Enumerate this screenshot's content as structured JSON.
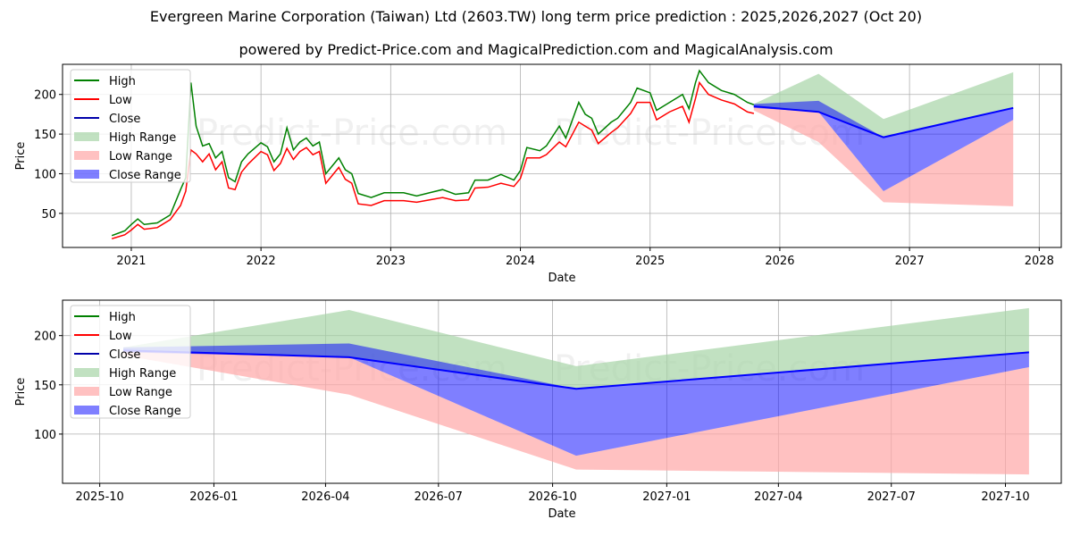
{
  "title": "Evergreen Marine Corporation (Taiwan) Ltd (2603.TW) long term price prediction : 2025,2026,2027 (Oct 20)",
  "subtitle": "powered by Predict-Price.com and MagicalPrediction.com and MagicalAnalysis.com",
  "watermark": "Predict-Price.com",
  "colors": {
    "high": "#008000",
    "low": "#ff0000",
    "close": "#0000ff",
    "high_range": "#a6d4a6",
    "low_range": "#ffa6a6",
    "close_range": "#0000ff"
  },
  "chart_data": [
    {
      "type": "line",
      "xlabel": "Date",
      "ylabel": "Price",
      "xlim": [
        2020.47,
        2028.17
      ],
      "ylim": [
        7,
        238
      ],
      "xticks": [
        2021,
        2022,
        2023,
        2024,
        2025,
        2026,
        2027,
        2028
      ],
      "xtick_labels": [
        "2021",
        "2022",
        "2023",
        "2024",
        "2025",
        "2026",
        "2027",
        "2028"
      ],
      "yticks": [
        50,
        100,
        150,
        200
      ],
      "grid": true,
      "legend": {
        "position": "top-left",
        "entries": [
          "High",
          "Low",
          "Close",
          "High Range",
          "Low Range",
          "Close Range"
        ]
      },
      "history": {
        "x": [
          2020.85,
          2020.95,
          2021.0,
          2021.05,
          2021.1,
          2021.2,
          2021.3,
          2021.38,
          2021.42,
          2021.46,
          2021.5,
          2021.55,
          2021.6,
          2021.65,
          2021.7,
          2021.75,
          2021.8,
          2021.85,
          2021.9,
          2022.0,
          2022.05,
          2022.1,
          2022.15,
          2022.2,
          2022.25,
          2022.3,
          2022.35,
          2022.4,
          2022.45,
          2022.5,
          2022.55,
          2022.6,
          2022.65,
          2022.7,
          2022.75,
          2022.85,
          2022.95,
          2023.1,
          2023.2,
          2023.3,
          2023.4,
          2023.5,
          2023.6,
          2023.65,
          2023.75,
          2023.85,
          2023.95,
          2024.0,
          2024.05,
          2024.15,
          2024.2,
          2024.3,
          2024.35,
          2024.45,
          2024.5,
          2024.55,
          2024.6,
          2024.7,
          2024.75,
          2024.85,
          2024.9,
          2025.0,
          2025.05,
          2025.15,
          2025.25,
          2025.3,
          2025.35,
          2025.38,
          2025.45,
          2025.55,
          2025.65,
          2025.75,
          2025.8
        ],
        "high": [
          22,
          28,
          36,
          43,
          36,
          38,
          48,
          80,
          95,
          215,
          160,
          135,
          138,
          120,
          128,
          95,
          90,
          115,
          125,
          139,
          134,
          115,
          125,
          158,
          130,
          140,
          145,
          135,
          140,
          100,
          110,
          120,
          105,
          100,
          75,
          70,
          76,
          76,
          72,
          76,
          80,
          74,
          76,
          92,
          92,
          99,
          92,
          104,
          133,
          129,
          135,
          160,
          145,
          190,
          175,
          170,
          150,
          165,
          170,
          190,
          208,
          202,
          180,
          190,
          200,
          182,
          215,
          230,
          215,
          205,
          200,
          190,
          187
        ],
        "low": [
          18,
          23,
          29,
          36,
          30,
          32,
          42,
          60,
          78,
          130,
          125,
          115,
          125,
          105,
          115,
          82,
          80,
          102,
          112,
          128,
          124,
          104,
          113,
          132,
          118,
          128,
          133,
          124,
          128,
          88,
          98,
          108,
          93,
          88,
          62,
          60,
          66,
          66,
          64,
          67,
          70,
          66,
          67,
          82,
          83,
          88,
          84,
          94,
          120,
          120,
          124,
          140,
          134,
          165,
          160,
          155,
          138,
          152,
          158,
          176,
          190,
          190,
          168,
          178,
          185,
          165,
          195,
          215,
          200,
          193,
          188,
          178,
          176
        ]
      }
    },
    {
      "type": "area",
      "xlabel": "Date",
      "ylabel": "Price",
      "xlim": [
        "2025-09-01",
        "2027-11-15"
      ],
      "ylim": [
        50,
        236
      ],
      "xtick_labels": [
        "2025-10",
        "2026-01",
        "2026-04",
        "2026-07",
        "2026-10",
        "2027-01",
        "2027-04",
        "2027-07",
        "2027-10"
      ],
      "yticks": [
        100,
        150,
        200
      ],
      "grid": true,
      "legend": {
        "position": "top-left",
        "entries": [
          "High",
          "Low",
          "Close",
          "High Range",
          "Low Range",
          "Close Range"
        ]
      },
      "prediction": {
        "dates": [
          "2025-10-20",
          "2026-04-20",
          "2026-10-20",
          "2027-10-20"
        ],
        "close": [
          185,
          178,
          146,
          183
        ],
        "high_range": [
          [
            185,
            188
          ],
          [
            178,
            226
          ],
          [
            146,
            169
          ],
          [
            183,
            228
          ]
        ],
        "close_range": [
          [
            183,
            188
          ],
          [
            178,
            192
          ],
          [
            78,
            146
          ],
          [
            168,
            183
          ]
        ],
        "low_range": [
          [
            180,
            185
          ],
          [
            140,
            178
          ],
          [
            64,
            78
          ],
          [
            59,
            168
          ]
        ]
      }
    }
  ]
}
